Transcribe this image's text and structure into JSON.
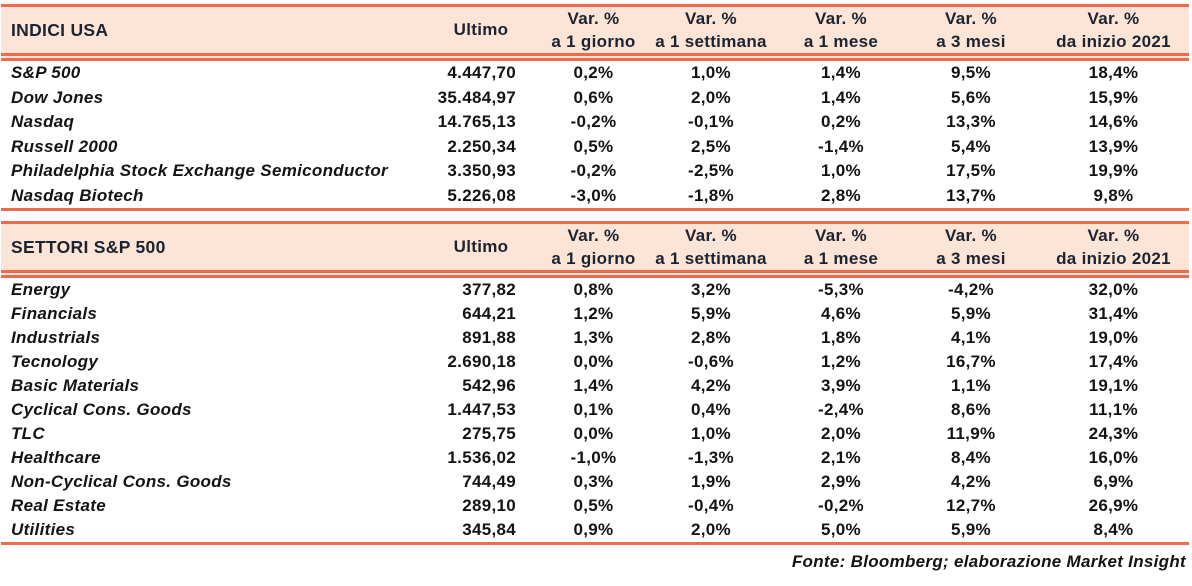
{
  "colors": {
    "rule": "#ED6A4D",
    "header_bg": "#FCE4D6",
    "header_text": "#1B2430",
    "body_text": "#131313"
  },
  "columns": {
    "ultimo": "Ultimo",
    "var_pct": "Var. %",
    "periods": [
      "a 1 giorno",
      "a 1 settimana",
      "a 1 mese",
      "a 3 mesi",
      "da inizio 2021"
    ]
  },
  "chart_data": [
    {
      "type": "table",
      "title": "INDICI USA",
      "column_headers": [
        "Ultimo",
        "Var. % a 1 giorno",
        "Var. % a 1 settimana",
        "Var. % a 1 mese",
        "Var. % a 3 mesi",
        "Var. % da inizio 2021"
      ],
      "rows": [
        {
          "label": "S&P 500",
          "ultimo": "4.447,70",
          "values": [
            "0,2%",
            "1,0%",
            "1,4%",
            "9,5%",
            "18,4%"
          ]
        },
        {
          "label": "Dow Jones",
          "ultimo": "35.484,97",
          "values": [
            "0,6%",
            "2,0%",
            "1,4%",
            "5,6%",
            "15,9%"
          ]
        },
        {
          "label": "Nasdaq",
          "ultimo": "14.765,13",
          "values": [
            "-0,2%",
            "-0,1%",
            "0,2%",
            "13,3%",
            "14,6%"
          ]
        },
        {
          "label": "Russell 2000",
          "ultimo": "2.250,34",
          "values": [
            "0,5%",
            "2,5%",
            "-1,4%",
            "5,4%",
            "13,9%"
          ]
        },
        {
          "label": "Philadelphia Stock Exchange Semiconductor",
          "ultimo": "3.350,93",
          "values": [
            "-0,2%",
            "-2,5%",
            "1,0%",
            "17,5%",
            "19,9%"
          ]
        },
        {
          "label": "Nasdaq Biotech",
          "ultimo": "5.226,08",
          "values": [
            "-3,0%",
            "-1,8%",
            "2,8%",
            "13,7%",
            "9,8%"
          ]
        }
      ]
    },
    {
      "type": "table",
      "title": "SETTORI S&P 500",
      "column_headers": [
        "Ultimo",
        "Var. % a 1 giorno",
        "Var. % a 1 settimana",
        "Var. % a 1 mese",
        "Var. % a 3 mesi",
        "Var. % da inizio 2021"
      ],
      "rows": [
        {
          "label": "Energy",
          "ultimo": "377,82",
          "values": [
            "0,8%",
            "3,2%",
            "-5,3%",
            "-4,2%",
            "32,0%"
          ]
        },
        {
          "label": "Financials",
          "ultimo": "644,21",
          "values": [
            "1,2%",
            "5,9%",
            "4,6%",
            "5,9%",
            "31,4%"
          ]
        },
        {
          "label": "Industrials",
          "ultimo": "891,88",
          "values": [
            "1,3%",
            "2,8%",
            "1,8%",
            "4,1%",
            "19,0%"
          ]
        },
        {
          "label": "Tecnology",
          "ultimo": "2.690,18",
          "values": [
            "0,0%",
            "-0,6%",
            "1,2%",
            "16,7%",
            "17,4%"
          ]
        },
        {
          "label": "Basic Materials",
          "ultimo": "542,96",
          "values": [
            "1,4%",
            "4,2%",
            "3,9%",
            "1,1%",
            "19,1%"
          ]
        },
        {
          "label": "Cyclical Cons. Goods",
          "ultimo": "1.447,53",
          "values": [
            "0,1%",
            "0,4%",
            "-2,4%",
            "8,6%",
            "11,1%"
          ]
        },
        {
          "label": "TLC",
          "ultimo": "275,75",
          "values": [
            "0,0%",
            "1,0%",
            "2,0%",
            "11,9%",
            "24,3%"
          ]
        },
        {
          "label": "Healthcare",
          "ultimo": "1.536,02",
          "values": [
            "-1,0%",
            "-1,3%",
            "2,1%",
            "8,4%",
            "16,0%"
          ]
        },
        {
          "label": "Non-Cyclical Cons. Goods",
          "ultimo": "744,49",
          "values": [
            "0,3%",
            "1,9%",
            "2,9%",
            "4,2%",
            "6,9%"
          ]
        },
        {
          "label": "Real Estate",
          "ultimo": "289,10",
          "values": [
            "0,5%",
            "-0,4%",
            "-0,2%",
            "12,7%",
            "26,9%"
          ]
        },
        {
          "label": "Utilities",
          "ultimo": "345,84",
          "values": [
            "0,9%",
            "2,0%",
            "5,0%",
            "5,9%",
            "8,4%"
          ]
        }
      ]
    }
  ],
  "footer": "Fonte: Bloomberg; elaborazione Market Insight"
}
